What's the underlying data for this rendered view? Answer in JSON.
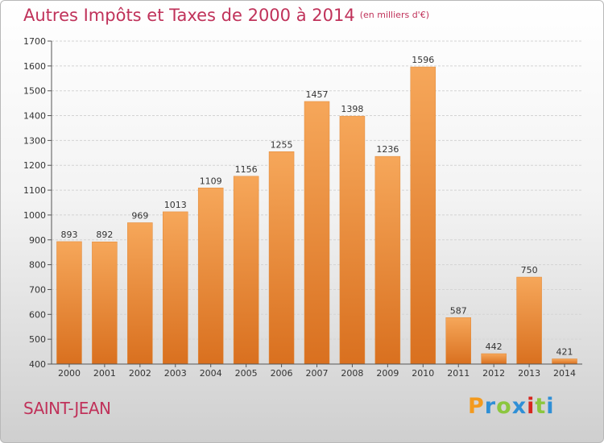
{
  "header": {
    "title": "Autres Impôts et Taxes de 2000 à 2014",
    "unit": "(en milliers d'€)"
  },
  "footer": {
    "place": "SAINT-JEAN",
    "brand": "Proxiti"
  },
  "colors": {
    "accent": "#c0325a",
    "bar_light": "#f6a75a",
    "bar_dark": "#d9701f",
    "brand_letters": [
      "#f39a1e",
      "#2f8fd6",
      "#8cc63f",
      "#2f8fd6",
      "#d7261e",
      "#8cc63f",
      "#2f8fd6"
    ]
  },
  "chart_data": {
    "type": "bar",
    "title": "Autres Impôts et Taxes de 2000 à 2014",
    "categories": [
      "2000",
      "2001",
      "2002",
      "2003",
      "2004",
      "2005",
      "2006",
      "2007",
      "2008",
      "2009",
      "2010",
      "2011",
      "2012",
      "2013",
      "2014"
    ],
    "values": [
      893,
      892,
      969,
      1013,
      1109,
      1156,
      1255,
      1457,
      1398,
      1236,
      1596,
      587,
      442,
      750,
      421
    ],
    "ylim": [
      400,
      1700
    ],
    "yticks": [
      400,
      500,
      600,
      700,
      800,
      900,
      1000,
      1100,
      1200,
      1300,
      1400,
      1500,
      1600,
      1700
    ],
    "grid": true,
    "xlabel": "",
    "ylabel": ""
  }
}
